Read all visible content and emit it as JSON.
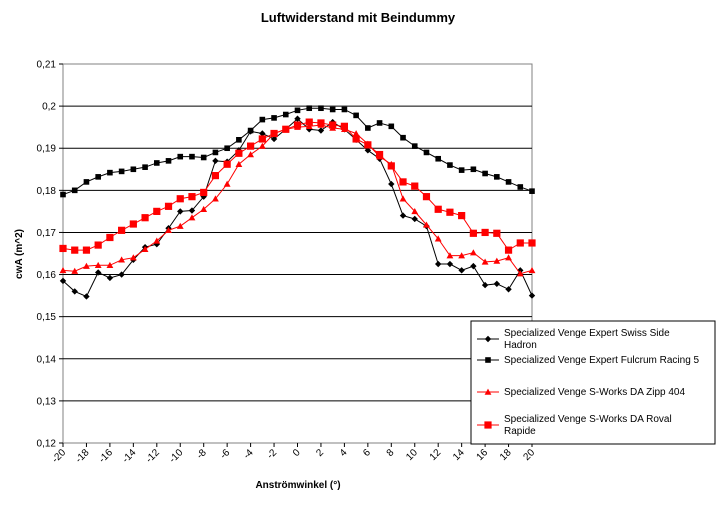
{
  "chart_data": {
    "type": "line",
    "title": "Luftwiderstand mit Beindummy",
    "xlabel": "Anströmwinkel (°)",
    "ylabel": "cwA (m^2)",
    "xlim": [
      -20,
      20
    ],
    "ylim": [
      0.12,
      0.21
    ],
    "x_ticks": [
      "-20",
      "-18",
      "-16",
      "-14",
      "-12",
      "-10",
      "-8",
      "-6",
      "-4",
      "-2",
      "0",
      "2",
      "4",
      "6",
      "8",
      "10",
      "12",
      "14",
      "16",
      "18",
      "20"
    ],
    "y_ticks": [
      "0,12",
      "0,13",
      "0,14",
      "0,15",
      "0,16",
      "0,17",
      "0,18",
      "0,19",
      "0,2",
      "0,21"
    ],
    "grid": "horizontal",
    "legend_position": "bottom-right",
    "x": [
      -20,
      -19,
      -18,
      -17,
      -16,
      -15,
      -14,
      -13,
      -12,
      -11,
      -10,
      -9,
      -8,
      -7,
      -6,
      -5,
      -4,
      -3,
      -2,
      -1,
      0,
      1,
      2,
      3,
      4,
      5,
      6,
      7,
      8,
      9,
      10,
      11,
      12,
      13,
      14,
      15,
      16,
      17,
      18,
      19,
      20
    ],
    "series": [
      {
        "name": "Specialized Venge Expert Swiss Side Hadron",
        "name_lines": [
          "Specialized Venge Expert Swiss Side",
          "Hadron"
        ],
        "color": "#000000",
        "marker": "diamond",
        "values": [
          0.1585,
          0.156,
          0.1548,
          0.1605,
          0.1592,
          0.16,
          0.1635,
          0.1665,
          0.1672,
          0.171,
          0.175,
          0.1752,
          0.1785,
          0.187,
          0.1868,
          0.1895,
          0.194,
          0.1935,
          0.1922,
          0.1945,
          0.197,
          0.1945,
          0.1942,
          0.1962,
          0.1945,
          0.192,
          0.1895,
          0.1875,
          0.1815,
          0.174,
          0.1732,
          0.1715,
          0.1625,
          0.1625,
          0.161,
          0.162,
          0.1575,
          0.1578,
          0.1565,
          0.161,
          0.155
        ]
      },
      {
        "name": "Specialized Venge Expert Fulcrum Racing 5",
        "name_lines": [
          "Specialized Venge Expert Fulcrum Racing 5"
        ],
        "color": "#000000",
        "marker": "square",
        "values": [
          0.179,
          0.18,
          0.182,
          0.1832,
          0.1842,
          0.1845,
          0.185,
          0.1855,
          0.1865,
          0.187,
          0.188,
          0.188,
          0.1878,
          0.189,
          0.19,
          0.192,
          0.1942,
          0.1968,
          0.1972,
          0.198,
          0.199,
          0.1995,
          0.1995,
          0.1992,
          0.1992,
          0.1978,
          0.1948,
          0.196,
          0.1952,
          0.1925,
          0.1905,
          0.189,
          0.1875,
          0.186,
          0.1848,
          0.185,
          0.184,
          0.1832,
          0.182,
          0.1808,
          0.1798
        ]
      },
      {
        "name": "Specialized Venge S-Works DA Zipp 404",
        "name_lines": [
          "Specialized Venge S-Works DA Zipp 404"
        ],
        "color": "#ff0000",
        "marker": "triangle",
        "values": [
          0.161,
          0.1608,
          0.162,
          0.1622,
          0.1622,
          0.1635,
          0.164,
          0.166,
          0.168,
          0.1705,
          0.1715,
          0.1735,
          0.1755,
          0.178,
          0.1815,
          0.1862,
          0.1885,
          0.1905,
          0.1935,
          0.1945,
          0.195,
          0.1952,
          0.1955,
          0.1948,
          0.1945,
          0.1935,
          0.191,
          0.188,
          0.1862,
          0.178,
          0.175,
          0.1718,
          0.1685,
          0.1645,
          0.1645,
          0.1652,
          0.163,
          0.1632,
          0.164,
          0.1602,
          0.161
        ]
      },
      {
        "name": "Specialized Venge S-Works DA Roval Rapide",
        "name_lines": [
          "Specialized Venge S-Works DA Roval",
          "Rapide"
        ],
        "color": "#ff0000",
        "marker": "square",
        "values": [
          0.1662,
          0.1658,
          0.1658,
          0.167,
          0.1688,
          0.1705,
          0.172,
          0.1735,
          0.175,
          0.1762,
          0.178,
          0.1785,
          0.1795,
          0.1835,
          0.1862,
          0.1888,
          0.1905,
          0.1922,
          0.1935,
          0.1945,
          0.1955,
          0.1962,
          0.196,
          0.1955,
          0.1952,
          0.1922,
          0.1908,
          0.1885,
          0.1858,
          0.182,
          0.181,
          0.1785,
          0.1755,
          0.1748,
          0.174,
          0.1698,
          0.17,
          0.1698,
          0.1658,
          0.1675,
          0.1675
        ]
      }
    ]
  }
}
